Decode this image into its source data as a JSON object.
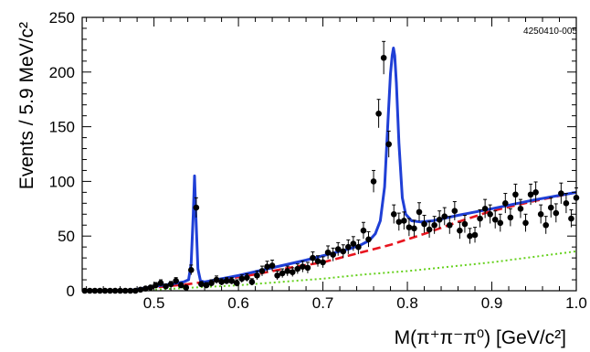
{
  "figure_id": "4250410-005",
  "chart_data": {
    "type": "scatter",
    "xlabel": "M(π⁺π⁻π⁰) [GeV/c²]",
    "ylabel": "Events / 5.9 MeV/c²",
    "xlim": [
      0.415,
      1.0
    ],
    "ylim": [
      0,
      250
    ],
    "x_ticks": [
      0.5,
      0.6,
      0.7,
      0.8,
      0.9,
      1.0
    ],
    "x_tick_labels": [
      "0.5",
      "0.6",
      "0.7",
      "0.8",
      "0.9",
      "1.0"
    ],
    "y_ticks": [
      0,
      50,
      100,
      150,
      200,
      250
    ],
    "y_tick_labels": [
      "0",
      "50",
      "100",
      "150",
      "200",
      "250"
    ],
    "grid": false,
    "colors": {
      "data": "#000000",
      "total_fit": "#1f3fd6",
      "background_fit": "#e8141e",
      "combinatorial_bg": "#66d11e"
    },
    "series": [
      {
        "kind": "points_with_errors",
        "x": [
          0.418,
          0.424,
          0.43,
          0.436,
          0.442,
          0.448,
          0.454,
          0.46,
          0.466,
          0.472,
          0.478,
          0.484,
          0.49,
          0.496,
          0.502,
          0.508,
          0.514,
          0.52,
          0.526,
          0.532,
          0.538,
          0.544,
          0.55,
          0.556,
          0.562,
          0.568,
          0.574,
          0.58,
          0.586,
          0.592,
          0.598,
          0.604,
          0.61,
          0.616,
          0.622,
          0.628,
          0.634,
          0.64,
          0.646,
          0.652,
          0.658,
          0.664,
          0.67,
          0.676,
          0.682,
          0.688,
          0.694,
          0.7,
          0.706,
          0.712,
          0.718,
          0.724,
          0.73,
          0.736,
          0.742,
          0.748,
          0.754,
          0.76,
          0.766,
          0.772,
          0.778,
          0.784,
          0.79,
          0.796,
          0.802,
          0.808,
          0.814,
          0.82,
          0.826,
          0.832,
          0.838,
          0.844,
          0.85,
          0.856,
          0.862,
          0.868,
          0.874,
          0.88,
          0.886,
          0.892,
          0.898,
          0.904,
          0.91,
          0.916,
          0.922,
          0.928,
          0.934,
          0.94,
          0.946,
          0.952,
          0.958,
          0.964,
          0.97,
          0.976,
          0.982,
          0.988,
          0.994,
          1.0
        ],
        "y": [
          0,
          0,
          0,
          0,
          0,
          0,
          0,
          0,
          0,
          0,
          0,
          1,
          2,
          3,
          5,
          7,
          4,
          6,
          9,
          5,
          3,
          19,
          76,
          6,
          5,
          7,
          10,
          8,
          9,
          9,
          7,
          11,
          12,
          8,
          14,
          18,
          22,
          23,
          14,
          16,
          18,
          17,
          20,
          22,
          21,
          30,
          27,
          26,
          35,
          33,
          38,
          36,
          40,
          43,
          40,
          55,
          47,
          100,
          162,
          213,
          134,
          70,
          63,
          64,
          58,
          57,
          72,
          61,
          56,
          60,
          65,
          68,
          60,
          73,
          55,
          61,
          50,
          51,
          66,
          75,
          70,
          65,
          62,
          80,
          67,
          88,
          75,
          62,
          88,
          90,
          70,
          60,
          76,
          71,
          89,
          80,
          66,
          85
        ],
        "yerr": [
          0,
          0,
          0,
          0,
          0,
          0,
          0,
          0,
          0,
          0,
          0,
          1,
          1.5,
          2,
          2.5,
          3,
          2,
          2.5,
          3,
          2.5,
          2,
          4.5,
          9,
          2.5,
          2.5,
          3,
          3.5,
          3,
          3,
          3,
          3,
          3.5,
          3.5,
          3,
          4,
          4.5,
          5,
          5,
          4,
          4,
          4.5,
          4,
          4.5,
          5,
          5,
          5.5,
          5,
          5,
          6,
          6,
          6,
          6,
          6.5,
          6.5,
          6.5,
          7.5,
          7,
          10,
          13,
          15,
          12,
          8.5,
          8,
          8,
          8,
          7.5,
          8.5,
          8,
          7.5,
          8,
          8,
          8,
          8,
          8.5,
          7.5,
          8,
          7,
          7,
          8,
          8.5,
          8.5,
          8,
          8,
          9,
          8,
          9.5,
          8.5,
          8,
          9.5,
          9.5,
          8.5,
          8,
          9,
          8.5,
          9.5,
          9,
          8,
          9
        ]
      },
      {
        "name": "",
        "kind": "total_fit",
        "x": [
          0.415,
          0.47,
          0.5,
          0.52,
          0.535,
          0.541,
          0.544,
          0.5465,
          0.548,
          0.5495,
          0.552,
          0.555,
          0.56,
          0.6,
          0.64,
          0.68,
          0.71,
          0.73,
          0.745,
          0.755,
          0.762,
          0.768,
          0.773,
          0.777,
          0.78,
          0.782,
          0.7835,
          0.785,
          0.787,
          0.79,
          0.794,
          0.798,
          0.805,
          0.815,
          0.83,
          0.86,
          0.9,
          0.95,
          1.0
        ],
        "y": [
          0,
          0,
          4,
          6,
          8,
          10,
          25,
          70,
          105,
          70,
          20,
          9,
          8,
          14,
          21,
          28,
          34,
          38,
          42,
          46,
          52,
          64,
          95,
          155,
          198,
          215,
          222,
          215,
          190,
          135,
          85,
          70,
          64,
          63,
          64,
          69,
          75,
          83,
          90
        ]
      },
      {
        "name": "",
        "kind": "background_fit",
        "x": [
          0.415,
          0.47,
          0.5,
          0.54,
          0.58,
          0.62,
          0.66,
          0.7,
          0.74,
          0.78,
          0.82,
          0.86,
          0.9,
          0.95,
          1.0
        ],
        "y": [
          0,
          0,
          3,
          6,
          10,
          15,
          21,
          26,
          34,
          42,
          52,
          63,
          73,
          82,
          90
        ]
      },
      {
        "name": "",
        "kind": "combinatorial_bg",
        "x": [
          0.415,
          0.47,
          0.5,
          0.55,
          0.6,
          0.65,
          0.7,
          0.75,
          0.8,
          0.85,
          0.9,
          0.95,
          1.0
        ],
        "y": [
          0,
          0,
          1,
          3,
          5,
          8,
          11,
          15,
          18,
          22,
          26,
          31,
          36
        ]
      }
    ]
  }
}
